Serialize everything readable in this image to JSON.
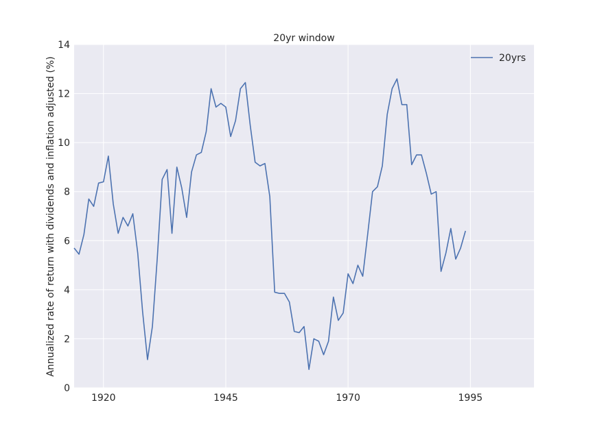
{
  "chart_data": {
    "type": "line",
    "title": "20yr window",
    "xlabel": "",
    "ylabel": "Annualized rate of return with dividends and inflation adjusted (%)",
    "xlim": [
      1914,
      2008
    ],
    "ylim": [
      0,
      14
    ],
    "xticks": [
      "1920",
      "1945",
      "1970",
      "1995"
    ],
    "yticks": [
      "0",
      "2",
      "4",
      "6",
      "8",
      "10",
      "12",
      "14"
    ],
    "grid": true,
    "legend_position": "top-right",
    "colors": {
      "background": "#eaeaf2",
      "grid": "#ffffff",
      "line": "#4c72b0"
    },
    "series": [
      {
        "name": "20yrs",
        "x": [
          1914,
          1915,
          1916,
          1917,
          1918,
          1919,
          1920,
          1921,
          1922,
          1923,
          1924,
          1925,
          1926,
          1927,
          1928,
          1929,
          1930,
          1931,
          1932,
          1933,
          1934,
          1935,
          1936,
          1937,
          1938,
          1939,
          1940,
          1941,
          1942,
          1943,
          1944,
          1945,
          1946,
          1947,
          1948,
          1949,
          1950,
          1951,
          1952,
          1953,
          1954,
          1955,
          1956,
          1957,
          1958,
          1959,
          1960,
          1961,
          1962,
          1963,
          1964,
          1965,
          1966,
          1967,
          1968,
          1969,
          1970,
          1971,
          1972,
          1973,
          1974,
          1975,
          1976,
          1977,
          1978,
          1979,
          1980,
          1981,
          1982,
          1983,
          1984,
          1985,
          1986,
          1987,
          1988,
          1989,
          1990,
          1991,
          1992,
          1993,
          1994
        ],
        "values": [
          5.7,
          5.45,
          6.25,
          7.7,
          7.4,
          8.35,
          8.4,
          9.45,
          7.5,
          6.3,
          6.95,
          6.6,
          7.1,
          5.5,
          3.1,
          1.15,
          2.5,
          5.3,
          8.5,
          8.9,
          6.3,
          9.0,
          8.15,
          6.95,
          8.8,
          9.5,
          9.6,
          10.45,
          12.2,
          11.45,
          11.6,
          11.45,
          10.25,
          10.9,
          12.2,
          12.45,
          10.7,
          9.2,
          9.05,
          9.15,
          7.8,
          3.9,
          3.85,
          3.85,
          3.5,
          2.3,
          2.25,
          2.5,
          0.75,
          2.0,
          1.9,
          1.35,
          1.9,
          3.7,
          2.75,
          3.05,
          4.65,
          4.25,
          5.0,
          4.55,
          6.25,
          8.0,
          8.2,
          9.05,
          11.15,
          12.2,
          12.6,
          11.55,
          11.55,
          9.1,
          9.5,
          9.5,
          8.75,
          7.9,
          8.0,
          4.75,
          5.5,
          6.5,
          5.25,
          5.7,
          6.4
        ]
      }
    ]
  }
}
